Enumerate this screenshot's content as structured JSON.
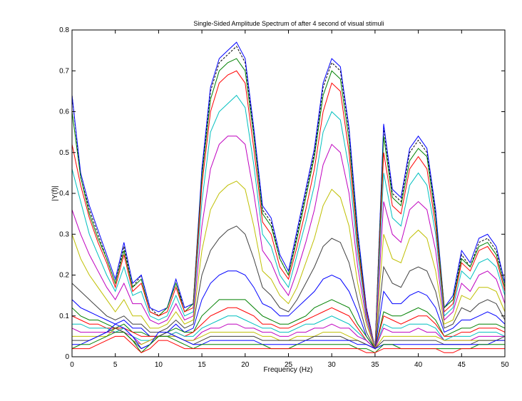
{
  "chart_data": {
    "type": "line",
    "title": "Single-Sided Amplitude Spectrum of after 4 second of visual stimuli",
    "xlabel": "Frequency (Hz)",
    "ylabel": "|Y(f)|",
    "xlim": [
      0,
      50
    ],
    "ylim": [
      0,
      0.8
    ],
    "xticks": [
      "0",
      "5",
      "10",
      "15",
      "20",
      "25",
      "30",
      "35",
      "40",
      "45",
      "50"
    ],
    "yticks": [
      "0",
      "0.1",
      "0.2",
      "0.3",
      "0.4",
      "0.5",
      "0.6",
      "0.7",
      "0.8"
    ],
    "grid": false,
    "legend": "none",
    "x": [
      0,
      1,
      2,
      3,
      4,
      5,
      6,
      7,
      8,
      9,
      10,
      11,
      12,
      13,
      14,
      15,
      16,
      17,
      18,
      19,
      20,
      21,
      22,
      23,
      24,
      25,
      26,
      27,
      28,
      29,
      30,
      31,
      32,
      33,
      34,
      35,
      36,
      37,
      38,
      39,
      40,
      41,
      42,
      43,
      44,
      45,
      46,
      47,
      48,
      49,
      50
    ],
    "series": [
      {
        "color": "#000000",
        "dashed": true,
        "values": [
          0.64,
          0.44,
          0.36,
          0.3,
          0.24,
          0.18,
          0.27,
          0.17,
          0.2,
          0.12,
          0.1,
          0.12,
          0.18,
          0.12,
          0.13,
          0.45,
          0.65,
          0.72,
          0.74,
          0.76,
          0.72,
          0.55,
          0.36,
          0.33,
          0.24,
          0.2,
          0.3,
          0.4,
          0.5,
          0.66,
          0.72,
          0.7,
          0.55,
          0.3,
          0.12,
          0.02,
          0.56,
          0.4,
          0.38,
          0.5,
          0.53,
          0.5,
          0.35,
          0.12,
          0.14,
          0.25,
          0.22,
          0.28,
          0.29,
          0.26,
          0.18
        ]
      },
      {
        "color": "#0000ff",
        "values": [
          0.64,
          0.45,
          0.37,
          0.31,
          0.25,
          0.19,
          0.28,
          0.18,
          0.2,
          0.12,
          0.11,
          0.12,
          0.19,
          0.12,
          0.13,
          0.46,
          0.66,
          0.73,
          0.75,
          0.77,
          0.73,
          0.56,
          0.37,
          0.34,
          0.25,
          0.21,
          0.31,
          0.41,
          0.51,
          0.67,
          0.73,
          0.71,
          0.56,
          0.31,
          0.12,
          0.02,
          0.57,
          0.41,
          0.39,
          0.51,
          0.54,
          0.51,
          0.36,
          0.12,
          0.15,
          0.26,
          0.23,
          0.29,
          0.3,
          0.27,
          0.18
        ]
      },
      {
        "color": "#008000",
        "values": [
          0.6,
          0.44,
          0.35,
          0.29,
          0.24,
          0.18,
          0.26,
          0.17,
          0.19,
          0.11,
          0.1,
          0.12,
          0.18,
          0.11,
          0.13,
          0.44,
          0.63,
          0.7,
          0.72,
          0.73,
          0.7,
          0.54,
          0.35,
          0.32,
          0.24,
          0.2,
          0.29,
          0.39,
          0.49,
          0.64,
          0.7,
          0.68,
          0.53,
          0.29,
          0.11,
          0.02,
          0.54,
          0.39,
          0.37,
          0.48,
          0.51,
          0.49,
          0.34,
          0.12,
          0.14,
          0.24,
          0.22,
          0.27,
          0.28,
          0.25,
          0.17
        ]
      },
      {
        "color": "#ff0000",
        "values": [
          0.52,
          0.42,
          0.34,
          0.28,
          0.23,
          0.17,
          0.25,
          0.16,
          0.18,
          0.11,
          0.1,
          0.11,
          0.17,
          0.11,
          0.12,
          0.42,
          0.6,
          0.67,
          0.69,
          0.7,
          0.67,
          0.51,
          0.33,
          0.3,
          0.22,
          0.19,
          0.27,
          0.36,
          0.46,
          0.6,
          0.67,
          0.65,
          0.5,
          0.27,
          0.11,
          0.02,
          0.5,
          0.37,
          0.35,
          0.46,
          0.49,
          0.46,
          0.32,
          0.11,
          0.13,
          0.23,
          0.21,
          0.26,
          0.27,
          0.24,
          0.16
        ]
      },
      {
        "color": "#00bfbf",
        "values": [
          0.46,
          0.38,
          0.3,
          0.25,
          0.2,
          0.16,
          0.22,
          0.15,
          0.16,
          0.1,
          0.09,
          0.1,
          0.15,
          0.1,
          0.11,
          0.38,
          0.55,
          0.6,
          0.62,
          0.64,
          0.61,
          0.47,
          0.3,
          0.27,
          0.2,
          0.17,
          0.25,
          0.33,
          0.42,
          0.55,
          0.6,
          0.58,
          0.46,
          0.25,
          0.1,
          0.02,
          0.45,
          0.34,
          0.32,
          0.42,
          0.45,
          0.42,
          0.3,
          0.1,
          0.12,
          0.21,
          0.19,
          0.23,
          0.24,
          0.22,
          0.15
        ]
      },
      {
        "color": "#bf00bf",
        "values": [
          0.36,
          0.3,
          0.25,
          0.21,
          0.17,
          0.14,
          0.18,
          0.13,
          0.13,
          0.09,
          0.08,
          0.09,
          0.13,
          0.09,
          0.1,
          0.32,
          0.46,
          0.52,
          0.54,
          0.54,
          0.52,
          0.4,
          0.26,
          0.23,
          0.18,
          0.15,
          0.21,
          0.28,
          0.36,
          0.47,
          0.52,
          0.5,
          0.4,
          0.22,
          0.09,
          0.02,
          0.38,
          0.3,
          0.28,
          0.36,
          0.38,
          0.36,
          0.26,
          0.09,
          0.11,
          0.18,
          0.16,
          0.2,
          0.21,
          0.19,
          0.13
        ]
      },
      {
        "color": "#bfbf00",
        "values": [
          0.3,
          0.24,
          0.2,
          0.17,
          0.14,
          0.11,
          0.14,
          0.1,
          0.1,
          0.07,
          0.07,
          0.08,
          0.11,
          0.08,
          0.09,
          0.26,
          0.36,
          0.4,
          0.42,
          0.43,
          0.41,
          0.32,
          0.21,
          0.19,
          0.15,
          0.13,
          0.17,
          0.23,
          0.29,
          0.37,
          0.41,
          0.39,
          0.32,
          0.18,
          0.08,
          0.02,
          0.3,
          0.24,
          0.23,
          0.29,
          0.31,
          0.29,
          0.21,
          0.08,
          0.09,
          0.15,
          0.14,
          0.17,
          0.17,
          0.16,
          0.11
        ]
      },
      {
        "color": "#404040",
        "values": [
          0.18,
          0.16,
          0.14,
          0.12,
          0.1,
          0.09,
          0.1,
          0.08,
          0.08,
          0.06,
          0.06,
          0.07,
          0.09,
          0.07,
          0.08,
          0.2,
          0.26,
          0.29,
          0.31,
          0.32,
          0.3,
          0.24,
          0.17,
          0.15,
          0.12,
          0.11,
          0.14,
          0.18,
          0.22,
          0.27,
          0.29,
          0.28,
          0.23,
          0.14,
          0.06,
          0.02,
          0.22,
          0.18,
          0.17,
          0.21,
          0.22,
          0.21,
          0.16,
          0.07,
          0.08,
          0.12,
          0.11,
          0.13,
          0.14,
          0.13,
          0.09
        ]
      },
      {
        "color": "#0000ff",
        "values": [
          0.14,
          0.12,
          0.11,
          0.1,
          0.09,
          0.08,
          0.09,
          0.07,
          0.07,
          0.05,
          0.05,
          0.06,
          0.08,
          0.06,
          0.07,
          0.14,
          0.18,
          0.2,
          0.21,
          0.21,
          0.2,
          0.17,
          0.13,
          0.12,
          0.1,
          0.1,
          0.12,
          0.14,
          0.16,
          0.19,
          0.2,
          0.19,
          0.16,
          0.11,
          0.05,
          0.02,
          0.16,
          0.13,
          0.13,
          0.15,
          0.16,
          0.15,
          0.12,
          0.06,
          0.07,
          0.09,
          0.09,
          0.1,
          0.11,
          0.1,
          0.08
        ]
      },
      {
        "color": "#008000",
        "values": [
          0.12,
          0.1,
          0.09,
          0.09,
          0.08,
          0.07,
          0.08,
          0.06,
          0.06,
          0.05,
          0.05,
          0.06,
          0.07,
          0.06,
          0.06,
          0.1,
          0.12,
          0.14,
          0.14,
          0.14,
          0.14,
          0.12,
          0.1,
          0.09,
          0.08,
          0.08,
          0.09,
          0.1,
          0.12,
          0.13,
          0.14,
          0.13,
          0.12,
          0.08,
          0.05,
          0.02,
          0.11,
          0.1,
          0.1,
          0.11,
          0.12,
          0.11,
          0.09,
          0.05,
          0.06,
          0.07,
          0.07,
          0.08,
          0.08,
          0.08,
          0.07
        ]
      },
      {
        "color": "#ff0000",
        "values": [
          0.1,
          0.09,
          0.08,
          0.08,
          0.07,
          0.07,
          0.07,
          0.06,
          0.05,
          0.05,
          0.05,
          0.05,
          0.06,
          0.05,
          0.06,
          0.08,
          0.1,
          0.11,
          0.12,
          0.12,
          0.11,
          0.1,
          0.08,
          0.08,
          0.07,
          0.07,
          0.08,
          0.09,
          0.1,
          0.11,
          0.12,
          0.11,
          0.1,
          0.07,
          0.04,
          0.02,
          0.1,
          0.09,
          0.08,
          0.09,
          0.1,
          0.1,
          0.08,
          0.05,
          0.05,
          0.06,
          0.06,
          0.07,
          0.07,
          0.07,
          0.06
        ]
      },
      {
        "color": "#00bfbf",
        "values": [
          0.08,
          0.08,
          0.07,
          0.07,
          0.07,
          0.06,
          0.07,
          0.05,
          0.04,
          0.04,
          0.05,
          0.05,
          0.06,
          0.05,
          0.05,
          0.07,
          0.08,
          0.09,
          0.1,
          0.1,
          0.09,
          0.08,
          0.07,
          0.07,
          0.06,
          0.06,
          0.07,
          0.08,
          0.08,
          0.09,
          0.1,
          0.09,
          0.08,
          0.06,
          0.04,
          0.02,
          0.08,
          0.07,
          0.07,
          0.08,
          0.08,
          0.08,
          0.07,
          0.04,
          0.05,
          0.05,
          0.05,
          0.06,
          0.06,
          0.06,
          0.05
        ]
      },
      {
        "color": "#bf00bf",
        "values": [
          0.07,
          0.06,
          0.06,
          0.06,
          0.06,
          0.06,
          0.06,
          0.05,
          0.03,
          0.04,
          0.05,
          0.05,
          0.05,
          0.04,
          0.04,
          0.06,
          0.07,
          0.07,
          0.08,
          0.08,
          0.07,
          0.07,
          0.06,
          0.06,
          0.05,
          0.05,
          0.06,
          0.06,
          0.07,
          0.07,
          0.08,
          0.07,
          0.07,
          0.05,
          0.04,
          0.02,
          0.07,
          0.06,
          0.06,
          0.06,
          0.07,
          0.06,
          0.06,
          0.04,
          0.04,
          0.04,
          0.04,
          0.05,
          0.05,
          0.05,
          0.05
        ]
      },
      {
        "color": "#bfbf00",
        "values": [
          0.05,
          0.05,
          0.05,
          0.05,
          0.05,
          0.07,
          0.06,
          0.04,
          0.03,
          0.04,
          0.05,
          0.05,
          0.05,
          0.04,
          0.04,
          0.05,
          0.06,
          0.06,
          0.06,
          0.06,
          0.06,
          0.06,
          0.05,
          0.05,
          0.04,
          0.04,
          0.05,
          0.05,
          0.05,
          0.06,
          0.06,
          0.06,
          0.05,
          0.04,
          0.03,
          0.02,
          0.05,
          0.05,
          0.05,
          0.05,
          0.05,
          0.05,
          0.05,
          0.04,
          0.04,
          0.04,
          0.04,
          0.04,
          0.04,
          0.04,
          0.04
        ]
      },
      {
        "color": "#404040",
        "values": [
          0.04,
          0.04,
          0.04,
          0.05,
          0.06,
          0.07,
          0.06,
          0.04,
          0.02,
          0.03,
          0.05,
          0.06,
          0.05,
          0.04,
          0.03,
          0.04,
          0.05,
          0.05,
          0.05,
          0.05,
          0.05,
          0.05,
          0.04,
          0.04,
          0.04,
          0.04,
          0.04,
          0.04,
          0.05,
          0.05,
          0.05,
          0.05,
          0.04,
          0.04,
          0.03,
          0.02,
          0.04,
          0.04,
          0.04,
          0.04,
          0.04,
          0.04,
          0.04,
          0.03,
          0.03,
          0.03,
          0.03,
          0.04,
          0.04,
          0.04,
          0.05
        ]
      },
      {
        "color": "#0000ff",
        "values": [
          0.03,
          0.03,
          0.04,
          0.05,
          0.06,
          0.08,
          0.07,
          0.05,
          0.02,
          0.03,
          0.06,
          0.06,
          0.05,
          0.04,
          0.03,
          0.03,
          0.04,
          0.04,
          0.04,
          0.04,
          0.04,
          0.04,
          0.03,
          0.03,
          0.03,
          0.03,
          0.03,
          0.04,
          0.04,
          0.04,
          0.04,
          0.04,
          0.04,
          0.03,
          0.03,
          0.02,
          0.03,
          0.03,
          0.03,
          0.03,
          0.03,
          0.03,
          0.03,
          0.03,
          0.03,
          0.03,
          0.03,
          0.03,
          0.03,
          0.04,
          0.04
        ]
      },
      {
        "color": "#008000",
        "values": [
          0.02,
          0.03,
          0.03,
          0.04,
          0.05,
          0.06,
          0.06,
          0.04,
          0.01,
          0.03,
          0.05,
          0.05,
          0.04,
          0.03,
          0.02,
          0.03,
          0.03,
          0.03,
          0.03,
          0.03,
          0.03,
          0.03,
          0.03,
          0.02,
          0.02,
          0.02,
          0.03,
          0.03,
          0.03,
          0.03,
          0.03,
          0.03,
          0.03,
          0.02,
          0.02,
          0.01,
          0.03,
          0.03,
          0.02,
          0.02,
          0.02,
          0.02,
          0.02,
          0.02,
          0.02,
          0.02,
          0.02,
          0.03,
          0.03,
          0.03,
          0.03
        ]
      },
      {
        "color": "#ff0000",
        "values": [
          0.02,
          0.02,
          0.02,
          0.03,
          0.04,
          0.05,
          0.05,
          0.03,
          0.01,
          0.02,
          0.04,
          0.04,
          0.03,
          0.02,
          0.02,
          0.02,
          0.02,
          0.02,
          0.02,
          0.02,
          0.02,
          0.02,
          0.02,
          0.02,
          0.02,
          0.02,
          0.02,
          0.02,
          0.02,
          0.02,
          0.02,
          0.02,
          0.02,
          0.02,
          0.01,
          0.01,
          0.02,
          0.02,
          0.02,
          0.02,
          0.02,
          0.02,
          0.02,
          0.01,
          0.01,
          0.02,
          0.02,
          0.02,
          0.02,
          0.02,
          0.02
        ]
      }
    ]
  }
}
